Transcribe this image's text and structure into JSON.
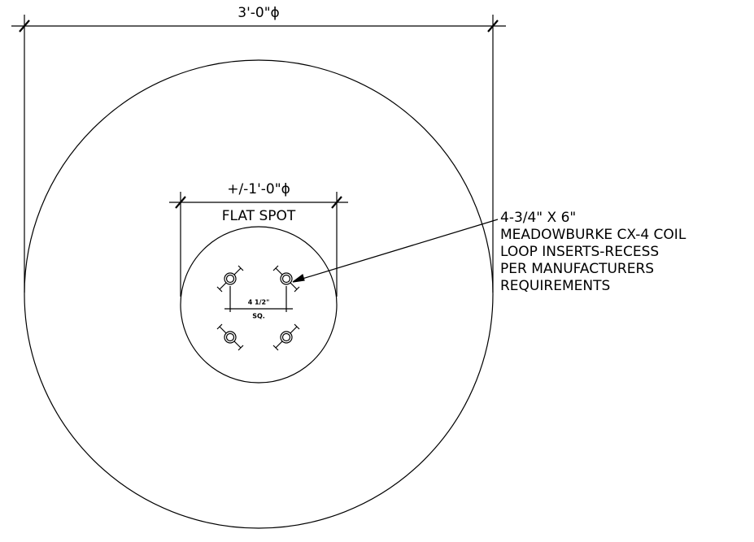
{
  "dimensions": {
    "overall": "3'-0\"ϕ",
    "flat_spot": "+/-1'-0\"ϕ",
    "flat_spot_label": "FLAT SPOT",
    "insert_spacing": "4 1/2\"",
    "insert_spacing_note": "SQ."
  },
  "callout": {
    "lines": [
      "4-3/4\" X 6\"",
      "MEADOWBURKE CX-4 COIL",
      "LOOP INSERTS-RECESS",
      "PER MANUFACTURERS",
      "REQUIREMENTS"
    ]
  }
}
